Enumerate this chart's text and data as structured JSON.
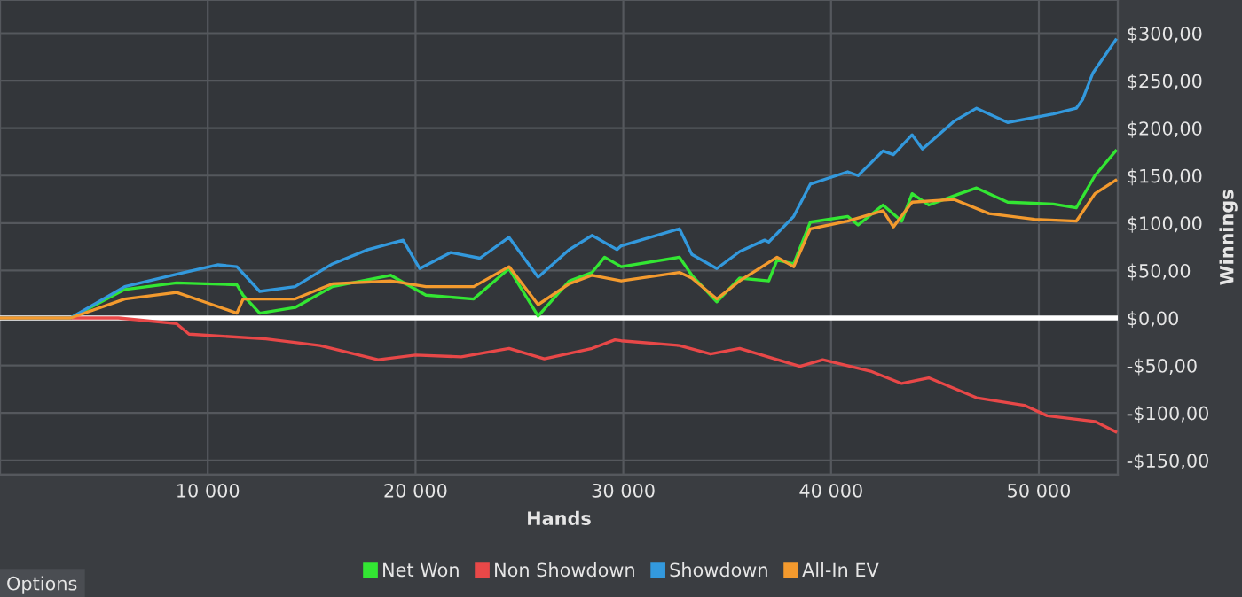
{
  "chart_data": {
    "type": "line",
    "xlabel": "Hands",
    "y2label": "Winnings",
    "xlim": [
      0,
      53800
    ],
    "xticks": [
      {
        "value": 10000,
        "label": "10 000"
      },
      {
        "value": 20000,
        "label": "20 000"
      },
      {
        "value": 30000,
        "label": "30 000"
      },
      {
        "value": 40000,
        "label": "40 000"
      },
      {
        "value": 50000,
        "label": "50 000"
      }
    ],
    "y2lim": [
      -165,
      335
    ],
    "y2ticks": [
      {
        "value": -150,
        "label": "-$150,00"
      },
      {
        "value": -100,
        "label": "-$100,00"
      },
      {
        "value": -50,
        "label": "-$50,00"
      },
      {
        "value": 0,
        "label": "$0,00"
      },
      {
        "value": 50,
        "label": "$50,00"
      },
      {
        "value": 100,
        "label": "$100,00"
      },
      {
        "value": 150,
        "label": "$150,00"
      },
      {
        "value": 200,
        "label": "$200,00"
      },
      {
        "value": 250,
        "label": "$250,00"
      },
      {
        "value": 300,
        "label": "$300,00"
      }
    ],
    "grid": true,
    "legend": "bottom",
    "marker": "none",
    "line_style": "solid",
    "ref_lines": [
      {
        "axis": "y2",
        "value": 0,
        "color": "#ffffff"
      }
    ],
    "annotations": [
      "Options"
    ],
    "series": [
      {
        "name": "Net Won",
        "color": "#33e633",
        "axis": "y2",
        "x": [
          0,
          3400,
          6000,
          8500,
          11400,
          11700,
          12500,
          14200,
          16000,
          18800,
          20500,
          22800,
          24500,
          25900,
          27400,
          28500,
          29100,
          29900,
          32700,
          33300,
          34500,
          35600,
          37000,
          37400,
          38200,
          39000,
          40800,
          41300,
          42500,
          43400,
          43900,
          44700,
          46200,
          47000,
          48500,
          50700,
          51800,
          52700,
          53700
        ],
        "values": [
          0,
          0,
          30,
          37,
          35,
          24,
          5,
          11,
          33,
          45,
          24,
          20,
          52,
          2,
          39,
          48,
          64,
          54,
          64,
          45,
          17,
          42,
          39,
          61,
          57,
          101,
          107,
          98,
          119,
          102,
          131,
          119,
          131,
          137,
          122,
          120,
          116,
          150,
          176
        ]
      },
      {
        "name": "Non Showdown",
        "color": "#e84848",
        "axis": "y2",
        "x": [
          0,
          5700,
          8500,
          9100,
          12800,
          15400,
          18200,
          20000,
          22200,
          24500,
          26200,
          28500,
          29600,
          29900,
          32700,
          34200,
          35600,
          38500,
          39600,
          41900,
          43400,
          44700,
          47000,
          49300,
          50400,
          52700,
          53700
        ],
        "values": [
          0,
          0,
          -6,
          -17,
          -22,
          -29,
          -44,
          -39,
          -41,
          -32,
          -43,
          -32,
          -23,
          -24,
          -29,
          -38,
          -32,
          -51,
          -44,
          -56,
          -69,
          -63,
          -84,
          -92,
          -103,
          -109,
          -120
        ]
      },
      {
        "name": "Showdown",
        "color": "#3399dd",
        "axis": "y2",
        "x": [
          0,
          3400,
          6000,
          8500,
          10500,
          11400,
          12500,
          14200,
          16000,
          17700,
          19400,
          20200,
          21700,
          23100,
          24500,
          25900,
          27400,
          28500,
          29700,
          29900,
          32700,
          33300,
          34500,
          35600,
          36800,
          37000,
          38200,
          39000,
          40800,
          41300,
          42500,
          43000,
          43900,
          44400,
          45900,
          47000,
          48500,
          50700,
          51800,
          52100,
          52600,
          53700
        ],
        "values": [
          0,
          0,
          33,
          46,
          56,
          54,
          28,
          33,
          57,
          72,
          82,
          52,
          69,
          63,
          85,
          43,
          72,
          87,
          72,
          76,
          94,
          67,
          52,
          70,
          82,
          80,
          107,
          141,
          154,
          150,
          176,
          172,
          193,
          178,
          207,
          221,
          206,
          215,
          221,
          230,
          258,
          293
        ]
      },
      {
        "name": "All-In EV",
        "color": "#f39a2e",
        "axis": "y2",
        "x": [
          0,
          3400,
          6000,
          8500,
          9700,
          11400,
          11700,
          14200,
          16000,
          18800,
          20500,
          22800,
          24500,
          25900,
          27400,
          28500,
          29900,
          32700,
          33300,
          34500,
          35600,
          37400,
          38200,
          39000,
          40800,
          42500,
          43000,
          43900,
          45900,
          47600,
          49800,
          51800,
          52700,
          53700
        ],
        "values": [
          0,
          0,
          20,
          27,
          18,
          5,
          20,
          20,
          36,
          39,
          33,
          33,
          54,
          14,
          36,
          45,
          39,
          48,
          42,
          20,
          39,
          64,
          54,
          94,
          102,
          113,
          96,
          122,
          125,
          110,
          104,
          102,
          131,
          145
        ]
      }
    ]
  }
}
